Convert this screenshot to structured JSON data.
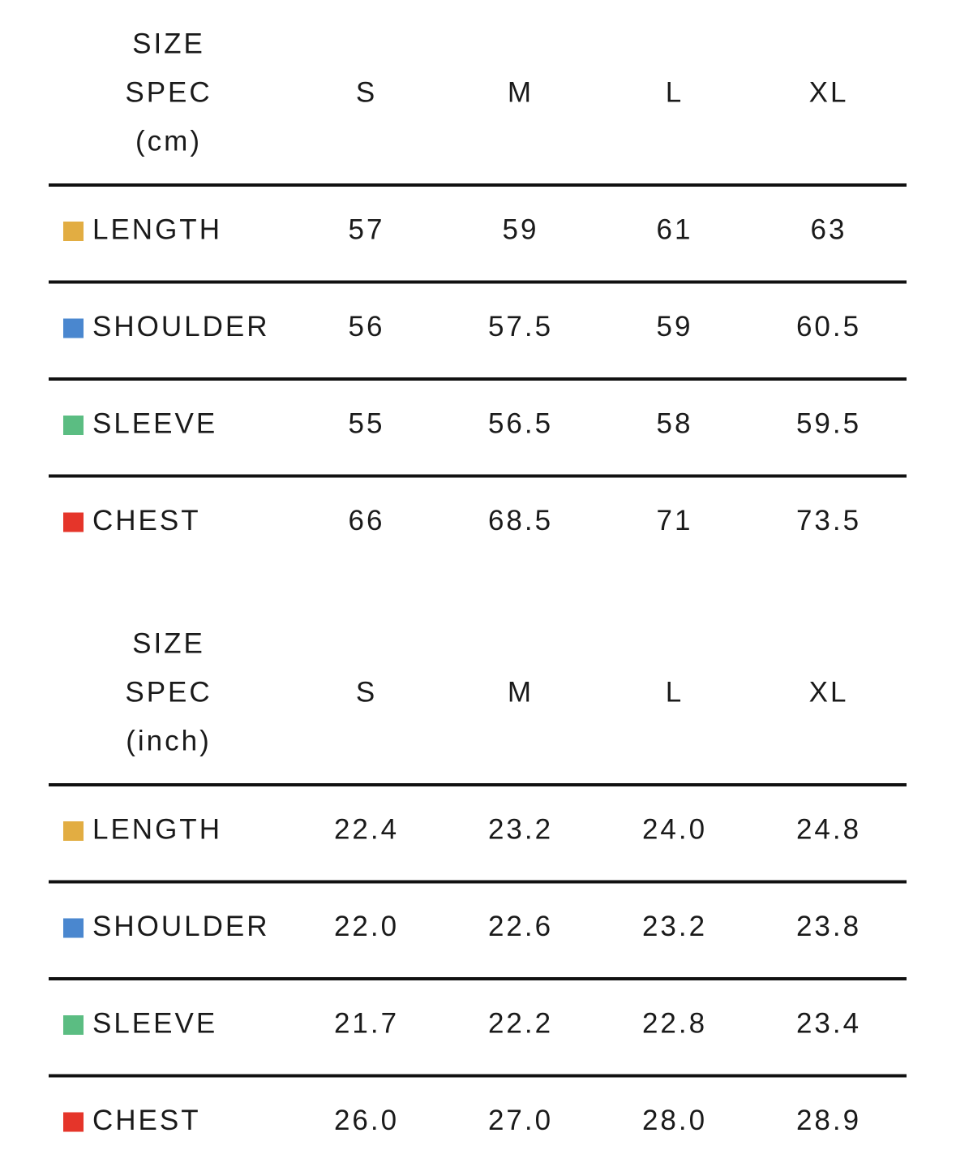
{
  "tables": [
    {
      "header": {
        "label": [
          "SIZE",
          "SPEC",
          "(cm)"
        ],
        "columns": [
          "S",
          "M",
          "L",
          "XL"
        ]
      },
      "rows": [
        {
          "label": "LENGTH",
          "color": "#e2ad42",
          "cells": [
            "57",
            "59",
            "61",
            "63"
          ]
        },
        {
          "label": "SHOULDER",
          "color": "#4a87cf",
          "cells": [
            "56",
            "57.5",
            "59",
            "60.5"
          ]
        },
        {
          "label": "SLEEVE",
          "color": "#5bbd82",
          "cells": [
            "55",
            "56.5",
            "58",
            "59.5"
          ]
        },
        {
          "label": "CHEST",
          "color": "#e5352a",
          "cells": [
            "66",
            "68.5",
            "71",
            "73.5"
          ]
        }
      ]
    },
    {
      "header": {
        "label": [
          "SIZE",
          "SPEC",
          "(inch)"
        ],
        "columns": [
          "S",
          "M",
          "L",
          "XL"
        ]
      },
      "rows": [
        {
          "label": "LENGTH",
          "color": "#e2ad42",
          "cells": [
            "22.4",
            "23.2",
            "24.0",
            "24.8"
          ]
        },
        {
          "label": "SHOULDER",
          "color": "#4a87cf",
          "cells": [
            "22.0",
            "22.6",
            "23.2",
            "23.8"
          ]
        },
        {
          "label": "SLEEVE",
          "color": "#5bbd82",
          "cells": [
            "21.7",
            "22.2",
            "22.8",
            "23.4"
          ]
        },
        {
          "label": "CHEST",
          "color": "#e5352a",
          "cells": [
            "26.0",
            "27.0",
            "28.0",
            "28.9"
          ]
        }
      ]
    }
  ]
}
